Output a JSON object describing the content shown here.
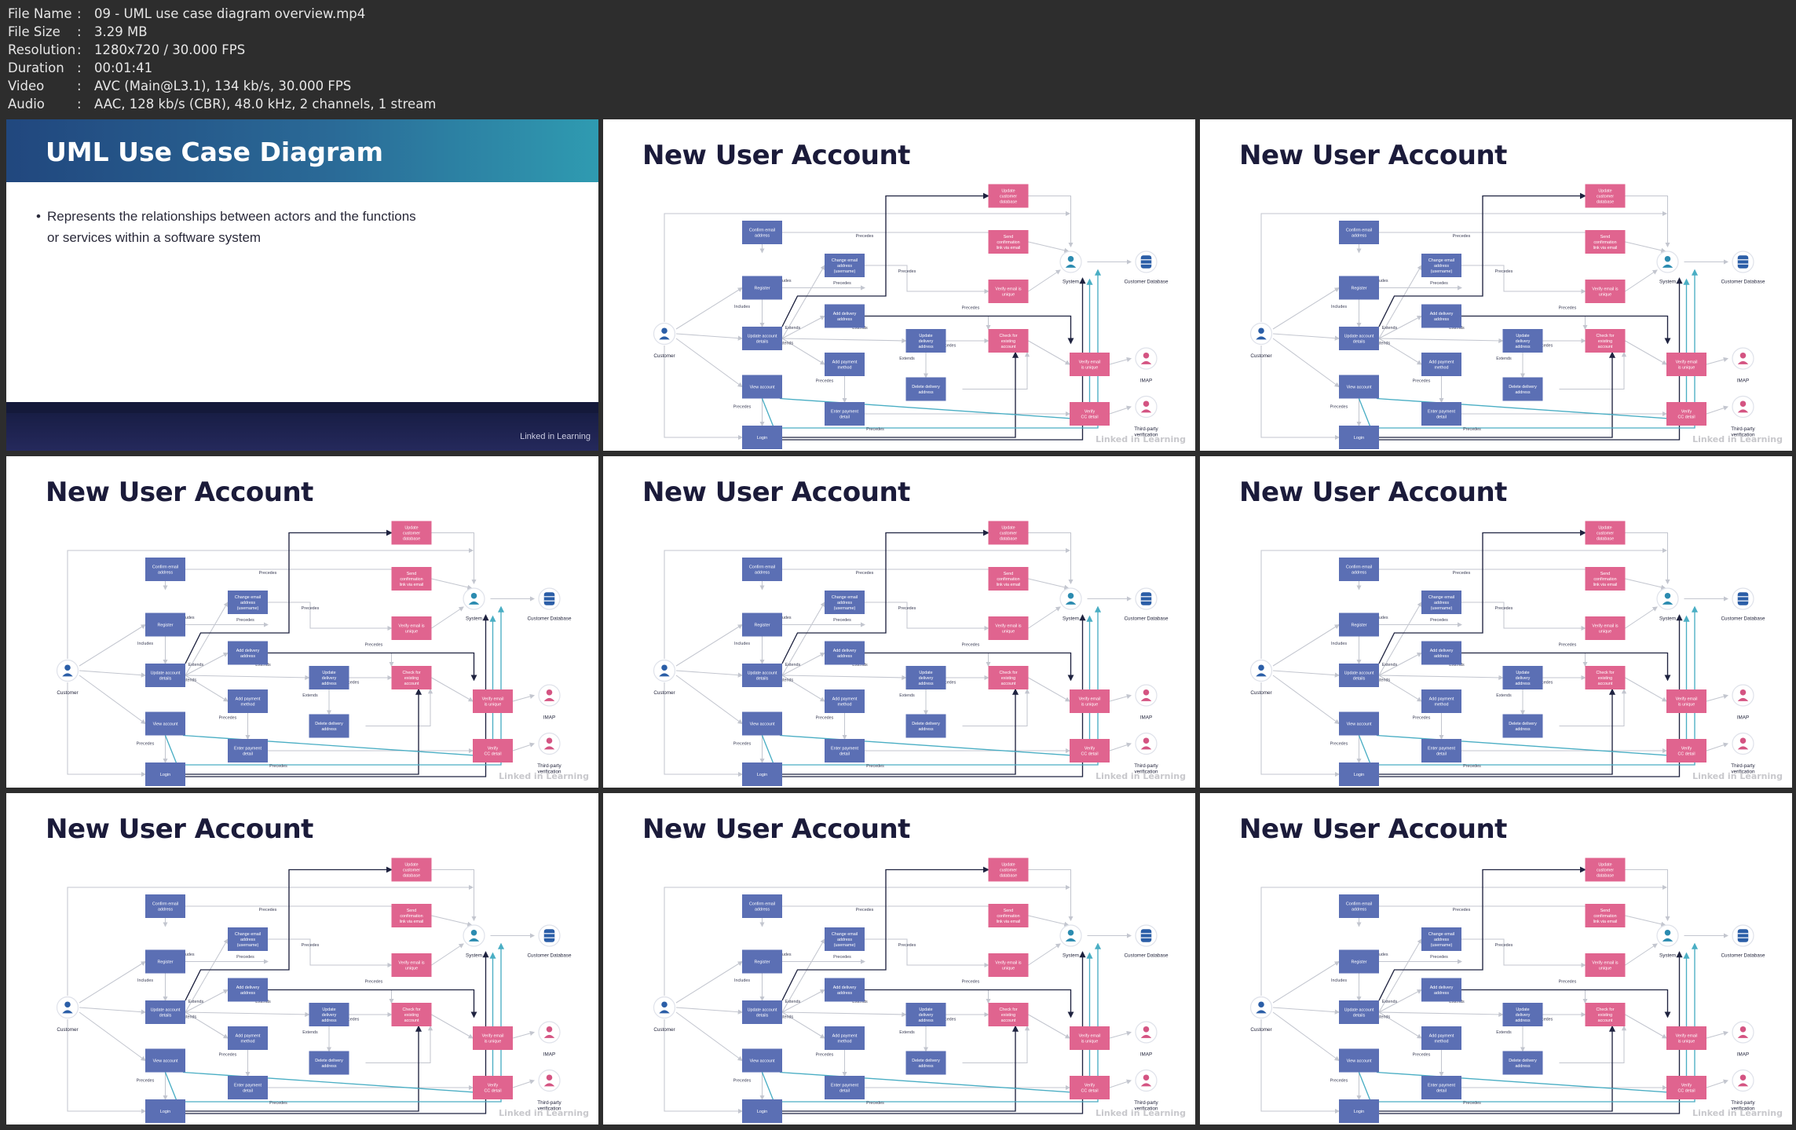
{
  "file_info": [
    {
      "key": "File Name",
      "value": "09 - UML use case diagram overview.mp4"
    },
    {
      "key": "File Size",
      "value": "3.29 MB"
    },
    {
      "key": "Resolution",
      "value": "1280x720 / 30.000 FPS"
    },
    {
      "key": "Duration",
      "value": "00:01:41"
    },
    {
      "key": "Video",
      "value": "AVC (Main@L3.1), 134 kb/s, 30.000 FPS"
    },
    {
      "key": "Audio",
      "value": "AAC, 128 kb/s (CBR), 48.0 kHz, 2 channels, 1 stream"
    }
  ],
  "intro": {
    "title": "UML Use Case Diagram",
    "bullet_line1": "Represents the relationships between actors and the functions",
    "bullet_line2": "or services within a software system",
    "logo": "Linked in Learning"
  },
  "slide_title": "New User Account",
  "watermark": "Linked in Learning",
  "diagram": {
    "blue_boxes": [
      {
        "id": "confirm",
        "lines": [
          "Confirm email",
          "address"
        ]
      },
      {
        "id": "change",
        "lines": [
          "Change email",
          "address",
          "(username)"
        ]
      },
      {
        "id": "register",
        "lines": [
          "Register"
        ]
      },
      {
        "id": "adddel",
        "lines": [
          "Add delivery",
          "address"
        ]
      },
      {
        "id": "updacc",
        "lines": [
          "Update account",
          "details"
        ]
      },
      {
        "id": "upddel",
        "lines": [
          "Update",
          "delivery",
          "address"
        ]
      },
      {
        "id": "addpay",
        "lines": [
          "Add payment",
          "method"
        ]
      },
      {
        "id": "deldel",
        "lines": [
          "Delete delivery",
          "address"
        ]
      },
      {
        "id": "viewacc",
        "lines": [
          "View account"
        ]
      },
      {
        "id": "enterpay",
        "lines": [
          "Enter payment",
          "detail"
        ]
      },
      {
        "id": "login",
        "lines": [
          "Login"
        ]
      }
    ],
    "pink_boxes": [
      {
        "id": "updcust",
        "lines": [
          "Update",
          "customer",
          "database"
        ]
      },
      {
        "id": "sendconf",
        "lines": [
          "Send",
          "confirmation",
          "link via email"
        ]
      },
      {
        "id": "verifyuniq",
        "lines": [
          "Verify email is",
          "unique"
        ]
      },
      {
        "id": "checkexist",
        "lines": [
          "Check for",
          "existing",
          "account"
        ]
      },
      {
        "id": "verifyemail",
        "lines": [
          "Verify email",
          "is unique"
        ]
      },
      {
        "id": "verifycc",
        "lines": [
          "Verify",
          "CC detail"
        ]
      }
    ],
    "actors": [
      {
        "id": "customer",
        "label": [
          "Customer"
        ],
        "color": "#2b5ea7"
      },
      {
        "id": "system",
        "label": [
          "System"
        ],
        "color": "#2b8bb0"
      },
      {
        "id": "custdb",
        "label": [
          "Customer Database"
        ],
        "color": "#2b5ea7"
      },
      {
        "id": "imap",
        "label": [
          "IMAP"
        ],
        "color": "#d45482"
      },
      {
        "id": "thirdparty",
        "label": [
          "Third-party",
          "verification"
        ],
        "color": "#d45482"
      }
    ],
    "edge_labels": [
      {
        "id": "l1",
        "text": "Precedes"
      },
      {
        "id": "l2",
        "text": "Includes"
      },
      {
        "id": "l3",
        "text": "Precedes"
      },
      {
        "id": "l4",
        "text": "Precedes"
      },
      {
        "id": "l5",
        "text": "Includes"
      },
      {
        "id": "l6",
        "text": "Precedes"
      },
      {
        "id": "l7",
        "text": "Extends"
      },
      {
        "id": "l8",
        "text": "Extends"
      },
      {
        "id": "l9",
        "text": "Extends"
      },
      {
        "id": "l10",
        "text": "Extends"
      },
      {
        "id": "l11",
        "text": "Precedes"
      },
      {
        "id": "l12",
        "text": "Precedes"
      },
      {
        "id": "l13",
        "text": "Precedes"
      },
      {
        "id": "l14",
        "text": "Precedes"
      }
    ],
    "colors": {
      "blue": "#5b6fb4",
      "pink": "#e0648f",
      "dark_line": "#1f2340",
      "teal_line": "#4aaec4",
      "gray_line": "#c3c6cf"
    }
  }
}
